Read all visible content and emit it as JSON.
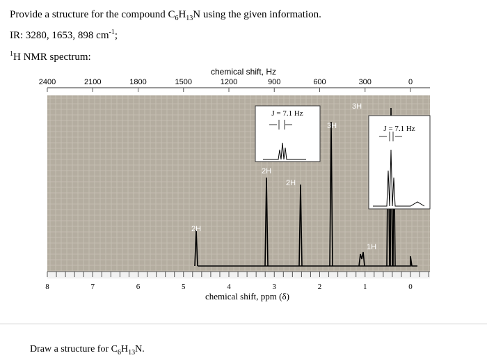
{
  "question": {
    "text": [
      "Provide a structure for the compound C",
      "6",
      "H",
      "13",
      "N using the given information."
    ]
  },
  "ir": {
    "text": [
      "IR: 3280, 1653, 898 cm",
      "-1",
      ";"
    ]
  },
  "nmr_label": {
    "text": [
      "1",
      "H NMR spectrum:"
    ]
  },
  "spectrum": {
    "top_axis_title": "chemical shift, Hz",
    "top_ticks": [
      "2400",
      "2100",
      "1800",
      "1500",
      "1200",
      "900",
      "600",
      "300",
      "0"
    ],
    "bottom_ticks": [
      "8",
      "7",
      "6",
      "5",
      "4",
      "3",
      "2",
      "1",
      "0"
    ],
    "bottom_axis_title": "chemical shift, ppm (δ)",
    "peak_labels": [
      "3H",
      "3H",
      "2H",
      "2H",
      "2H",
      "1H"
    ],
    "inset_labels": [
      "J = 7.1 Hz",
      "J = 7.1 Hz"
    ]
  },
  "footer": {
    "text": [
      "Draw a structure for C",
      "6",
      "H",
      "13",
      "N."
    ]
  }
}
